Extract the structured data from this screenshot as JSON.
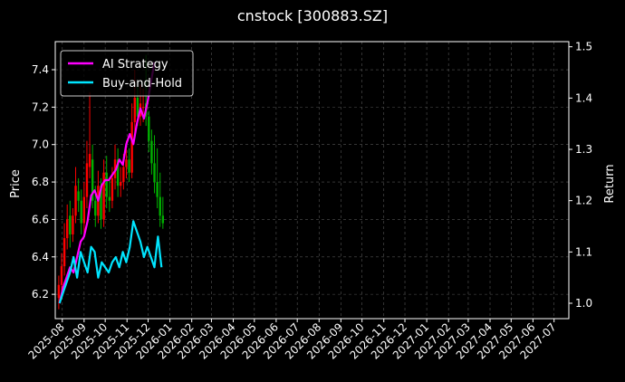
{
  "chart_data": {
    "type": "line",
    "title": "cnstock [300883.SZ]",
    "ylabel_left": "Price",
    "ylabel_right": "Return",
    "x_ticks": [
      "2025-08",
      "2025-09",
      "2025-10",
      "2025-11",
      "2025-12",
      "2026-01",
      "2026-02",
      "2026-03",
      "2026-04",
      "2026-05",
      "2026-06",
      "2026-07",
      "2026-08",
      "2026-09",
      "2026-10",
      "2026-11",
      "2026-12",
      "2027-01",
      "2027-02",
      "2027-03",
      "2027-04",
      "2027-05",
      "2027-06",
      "2027-07"
    ],
    "xlim": [
      "2025-07-22",
      "2027-07-22"
    ],
    "ylim_left": [
      6.07,
      7.55
    ],
    "yticks_left": [
      6.2,
      6.4,
      6.6,
      6.8,
      7.0,
      7.2,
      7.4
    ],
    "ylim_right": [
      0.97,
      1.51
    ],
    "yticks_right": [
      1.0,
      1.1,
      1.2,
      1.3,
      1.4,
      1.5
    ],
    "grid": true,
    "legend_position": "top-left",
    "colors": {
      "background": "#000000",
      "ai_strategy": "#ff00ff",
      "buy_and_hold": "#00e5ff",
      "candle_up": "#ff0000",
      "candle_down": "#00b000",
      "grid": "#555555"
    },
    "series": [
      {
        "name": "AI Strategy",
        "axis": "right",
        "x": [
          "2025-07-28",
          "2025-08-02",
          "2025-08-07",
          "2025-08-12",
          "2025-08-17",
          "2025-08-22",
          "2025-08-27",
          "2025-09-01",
          "2025-09-06",
          "2025-09-11",
          "2025-09-16",
          "2025-09-21",
          "2025-09-26",
          "2025-10-01",
          "2025-10-06",
          "2025-10-11",
          "2025-10-16",
          "2025-10-21",
          "2025-10-26",
          "2025-10-31",
          "2025-11-05",
          "2025-11-10",
          "2025-11-15",
          "2025-11-20",
          "2025-11-25",
          "2025-11-30",
          "2025-12-05",
          "2025-12-10"
        ],
        "values": [
          1.0,
          1.03,
          1.05,
          1.07,
          1.06,
          1.09,
          1.12,
          1.13,
          1.16,
          1.21,
          1.22,
          1.2,
          1.23,
          1.24,
          1.24,
          1.25,
          1.26,
          1.28,
          1.27,
          1.31,
          1.33,
          1.31,
          1.35,
          1.38,
          1.36,
          1.39,
          1.43,
          1.47
        ]
      },
      {
        "name": "Buy-and-Hold",
        "axis": "right",
        "x": [
          "2025-07-28",
          "2025-08-02",
          "2025-08-07",
          "2025-08-12",
          "2025-08-17",
          "2025-08-22",
          "2025-08-27",
          "2025-09-01",
          "2025-09-06",
          "2025-09-11",
          "2025-09-16",
          "2025-09-21",
          "2025-09-26",
          "2025-10-01",
          "2025-10-06",
          "2025-10-11",
          "2025-10-16",
          "2025-10-21",
          "2025-10-26",
          "2025-10-31",
          "2025-11-05",
          "2025-11-10",
          "2025-11-15",
          "2025-11-20",
          "2025-11-25",
          "2025-11-30",
          "2025-12-05",
          "2025-12-10",
          "2025-12-15",
          "2025-12-20"
        ],
        "values": [
          1.0,
          1.02,
          1.04,
          1.06,
          1.09,
          1.05,
          1.1,
          1.08,
          1.06,
          1.11,
          1.1,
          1.05,
          1.08,
          1.07,
          1.06,
          1.08,
          1.09,
          1.07,
          1.1,
          1.08,
          1.11,
          1.16,
          1.14,
          1.12,
          1.09,
          1.11,
          1.09,
          1.07,
          1.13,
          1.07
        ]
      }
    ],
    "candles": {
      "axis": "left",
      "x": [
        "2025-07-27",
        "2025-07-31",
        "2025-08-04",
        "2025-08-08",
        "2025-08-12",
        "2025-08-16",
        "2025-08-20",
        "2025-08-24",
        "2025-08-28",
        "2025-09-01",
        "2025-09-05",
        "2025-09-09",
        "2025-09-13",
        "2025-09-17",
        "2025-09-21",
        "2025-09-25",
        "2025-09-29",
        "2025-10-03",
        "2025-10-07",
        "2025-10-11",
        "2025-10-15",
        "2025-10-19",
        "2025-10-23",
        "2025-10-27",
        "2025-10-31",
        "2025-11-04",
        "2025-11-08",
        "2025-11-12",
        "2025-11-16",
        "2025-11-20",
        "2025-11-24",
        "2025-11-28",
        "2025-12-02",
        "2025-12-06",
        "2025-12-10",
        "2025-12-14",
        "2025-12-18",
        "2025-12-22"
      ],
      "open": [
        6.18,
        6.25,
        6.35,
        6.5,
        6.62,
        6.52,
        6.62,
        6.75,
        6.7,
        6.58,
        6.72,
        6.88,
        6.92,
        6.7,
        6.62,
        6.78,
        6.6,
        6.85,
        6.72,
        6.7,
        6.82,
        6.92,
        6.78,
        6.8,
        6.88,
        6.92,
        6.85,
        7.12,
        7.25,
        7.15,
        7.2,
        7.22,
        7.15,
        7.02,
        6.9,
        6.8,
        6.72,
        6.62
      ],
      "close": [
        6.25,
        6.35,
        6.5,
        6.6,
        6.52,
        6.62,
        6.78,
        6.7,
        6.58,
        6.72,
        6.9,
        6.95,
        6.7,
        6.62,
        6.78,
        6.6,
        6.85,
        6.72,
        6.7,
        6.82,
        6.92,
        6.78,
        6.8,
        6.88,
        6.92,
        6.85,
        7.12,
        7.25,
        7.15,
        7.22,
        7.2,
        7.15,
        7.02,
        6.9,
        6.8,
        6.72,
        6.62,
        6.58
      ],
      "high": [
        6.3,
        6.42,
        6.58,
        6.68,
        6.7,
        6.66,
        6.88,
        6.82,
        6.76,
        6.8,
        7.02,
        7.28,
        7.0,
        6.78,
        6.86,
        6.82,
        6.92,
        6.94,
        6.82,
        6.88,
        7.0,
        6.98,
        6.88,
        6.95,
        7.02,
        6.98,
        7.22,
        7.4,
        7.34,
        7.32,
        7.3,
        7.48,
        7.18,
        7.08,
        7.05,
        6.98,
        6.85,
        6.72
      ],
      "low": [
        6.12,
        6.2,
        6.3,
        6.44,
        6.45,
        6.48,
        6.58,
        6.64,
        6.52,
        6.52,
        6.66,
        6.82,
        6.66,
        6.56,
        6.58,
        6.55,
        6.56,
        6.66,
        6.64,
        6.66,
        6.76,
        6.72,
        6.72,
        6.76,
        6.82,
        6.8,
        6.82,
        7.06,
        7.1,
        7.1,
        7.12,
        7.1,
        6.96,
        6.84,
        6.74,
        6.66,
        6.56,
        6.55
      ]
    }
  }
}
